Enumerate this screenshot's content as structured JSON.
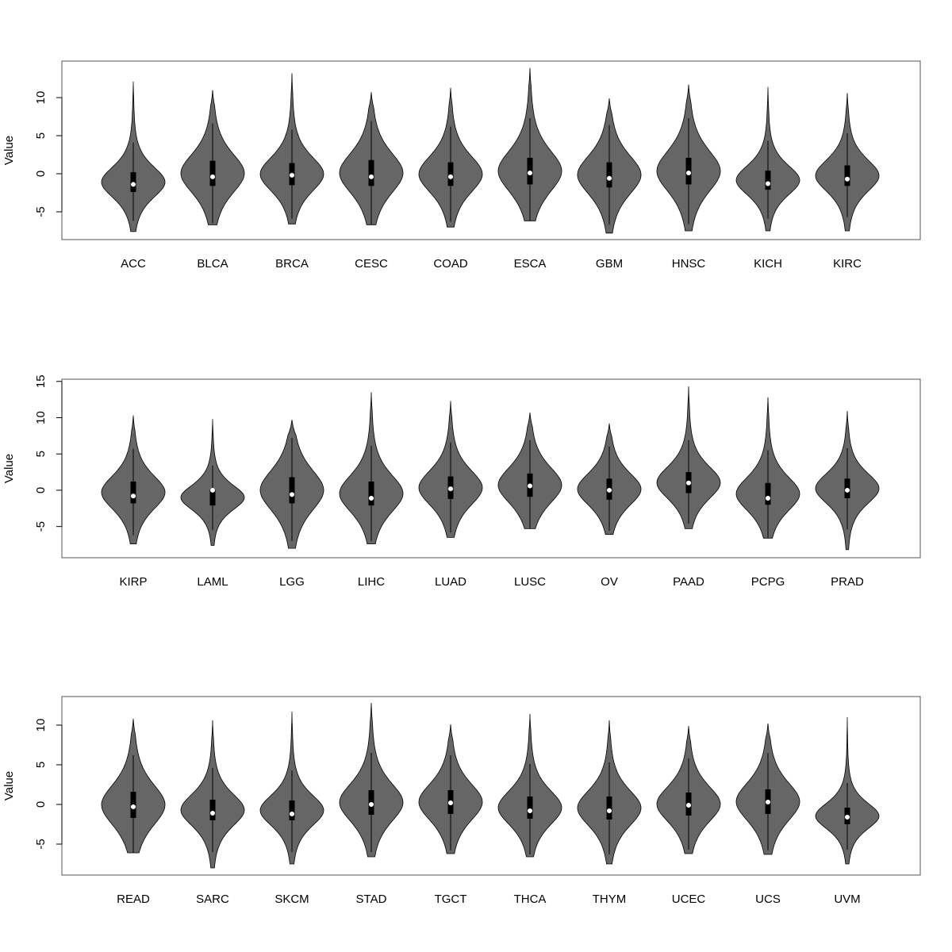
{
  "chart_data": [
    {
      "type": "violin",
      "ylabel": "Value",
      "color": "#666666",
      "box_color": "#000000",
      "median_color": "#ffffff",
      "categories": [
        "ACC",
        "BLCA",
        "BRCA",
        "CESC",
        "COAD",
        "ESCA",
        "GBM",
        "HNSC",
        "KICH",
        "KIRC"
      ],
      "min": [
        -7.6,
        -6.7,
        -6.6,
        -6.7,
        -7.0,
        -6.2,
        -7.8,
        -7.5,
        -7.5,
        -7.5
      ],
      "lower_whisker": [
        -6.2,
        -6.5,
        -5.9,
        -6.7,
        -6.3,
        -6.2,
        -6.7,
        -6.6,
        -5.9,
        -5.7
      ],
      "q1": [
        -2.4,
        -1.6,
        -1.5,
        -1.6,
        -1.6,
        -1.4,
        -1.8,
        -1.4,
        -2.1,
        -1.6
      ],
      "median": [
        -1.4,
        -0.4,
        -0.2,
        -0.4,
        -0.4,
        0.1,
        -0.6,
        0.1,
        -1.3,
        -0.7
      ],
      "q3": [
        0.2,
        1.7,
        1.4,
        1.8,
        1.5,
        2.1,
        1.5,
        2.1,
        0.4,
        1.1
      ],
      "upper_whisker": [
        4.1,
        6.6,
        5.8,
        6.9,
        6.2,
        7.3,
        6.4,
        7.3,
        4.3,
        5.3
      ],
      "max": [
        12.1,
        11.0,
        13.2,
        10.7,
        11.3,
        13.9,
        9.9,
        11.7,
        11.4,
        10.6
      ],
      "ylim": [
        -8.65,
        14.8
      ],
      "yticks": [
        -5,
        0,
        5,
        10
      ]
    },
    {
      "type": "violin",
      "ylabel": "Value",
      "color": "#666666",
      "box_color": "#000000",
      "median_color": "#ffffff",
      "categories": [
        "KIRP",
        "LAML",
        "LGG",
        "LIHC",
        "LUAD",
        "LUSC",
        "OV",
        "PAAD",
        "PCPG",
        "PRAD"
      ],
      "min": [
        -7.4,
        -7.6,
        -8.0,
        -7.4,
        -6.5,
        -5.3,
        -6.1,
        -5.3,
        -6.6,
        -8.2
      ],
      "lower_whisker": [
        -6.2,
        -5.5,
        -7.0,
        -7.0,
        -5.8,
        -5.3,
        -5.6,
        -4.6,
        -6.5,
        -5.4
      ],
      "q1": [
        -1.8,
        -2.1,
        -1.8,
        -2.1,
        -1.2,
        -0.9,
        -1.3,
        -0.4,
        -2.0,
        -1.1
      ],
      "median": [
        -0.8,
        0,
        -0.6,
        -1.1,
        0.2,
        0.6,
        0,
        1.0,
        -1.1,
        0
      ],
      "q3": [
        1.2,
        0.1,
        1.8,
        1.2,
        1.9,
        2.3,
        1.6,
        2.5,
        1.0,
        1.6
      ],
      "upper_whisker": [
        5.7,
        3.4,
        7.2,
        6.1,
        6.6,
        6.9,
        6.0,
        6.9,
        5.5,
        5.8
      ],
      "max": [
        10.3,
        9.8,
        9.7,
        13.5,
        12.3,
        10.7,
        9.2,
        14.3,
        12.8,
        10.9
      ],
      "ylim": [
        -9.3,
        15.3
      ],
      "yticks": [
        -5,
        0,
        5,
        10,
        15
      ]
    },
    {
      "type": "violin",
      "ylabel": "Value",
      "color": "#666666",
      "box_color": "#000000",
      "median_color": "#ffffff",
      "categories": [
        "READ",
        "SARC",
        "SKCM",
        "STAD",
        "TGCT",
        "THCA",
        "THYM",
        "UCEC",
        "UCS",
        "UVM"
      ],
      "min": [
        -6.1,
        -8.0,
        -7.5,
        -6.6,
        -6.2,
        -6.6,
        -7.5,
        -6.2,
        -6.3,
        -7.5
      ],
      "lower_whisker": [
        -6.1,
        -6.0,
        -6.0,
        -6.0,
        -5.8,
        -6.3,
        -6.3,
        -5.7,
        -5.8,
        -5.7
      ],
      "q1": [
        -1.7,
        -2.0,
        -2.0,
        -1.3,
        -1.2,
        -1.8,
        -1.9,
        -1.4,
        -1.2,
        -2.5
      ],
      "median": [
        -0.3,
        -1.1,
        -1.2,
        0,
        0.2,
        -0.8,
        -0.8,
        -0.1,
        0.3,
        -1.6
      ],
      "q3": [
        1.6,
        0.6,
        0.5,
        1.8,
        1.8,
        1.0,
        1.0,
        1.5,
        1.9,
        -0.4
      ],
      "upper_whisker": [
        6.2,
        4.6,
        4.3,
        6.5,
        6.2,
        5.1,
        5.3,
        5.8,
        6.5,
        2.7
      ],
      "max": [
        10.8,
        10.6,
        11.7,
        12.8,
        10.1,
        11.4,
        10.6,
        9.9,
        10.2,
        11.0
      ],
      "ylim": [
        -8.9,
        13.6
      ],
      "yticks": [
        -5,
        0,
        5,
        10
      ]
    }
  ]
}
